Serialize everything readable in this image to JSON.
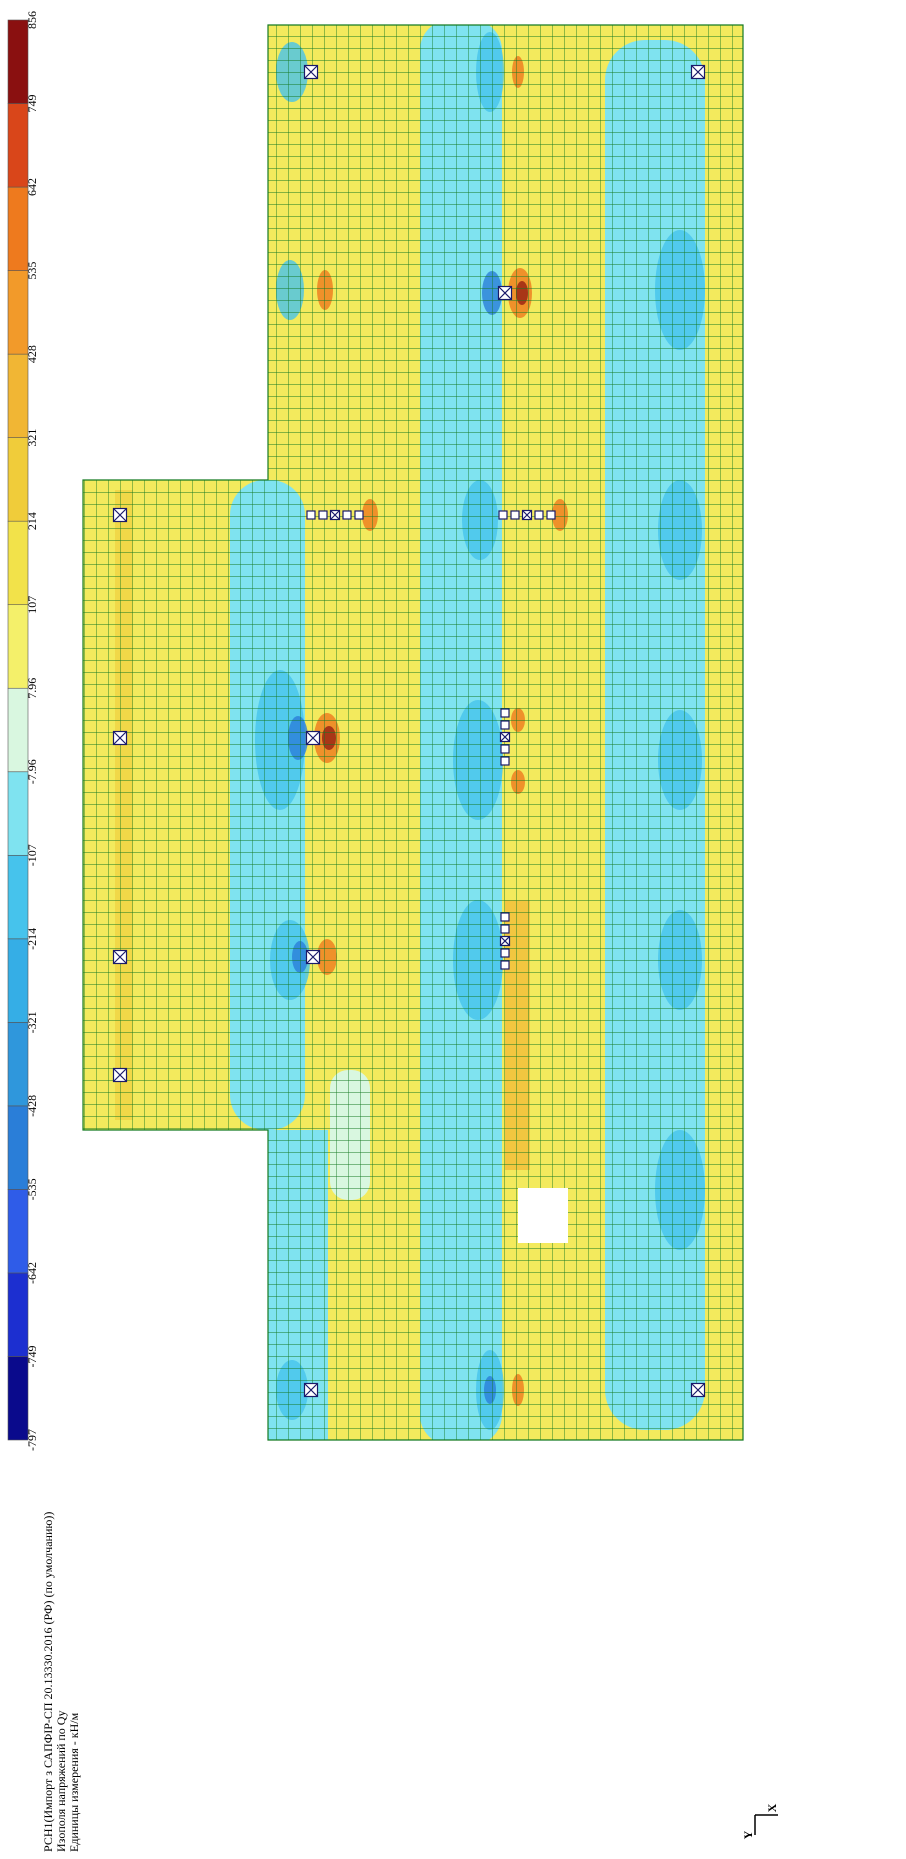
{
  "legend": {
    "labels": [
      "-797",
      "-749",
      "-642",
      "-535",
      "-428",
      "-321",
      "-214",
      "-107",
      "-7.96",
      "7.96",
      "107",
      "214",
      "321",
      "428",
      "535",
      "642",
      "749",
      "856"
    ],
    "colors": [
      "#0a0a8c",
      "#1c2fd0",
      "#2f5ce8",
      "#2a7ed8",
      "#2f97dc",
      "#35aee6",
      "#46c3ec",
      "#7fe3f0",
      "#d9f7e0",
      "#f4f06a",
      "#f2e24a",
      "#f0cc3a",
      "#f1b634",
      "#f29a2a",
      "#ee7a1e",
      "#d9461a",
      "#8a1010"
    ]
  },
  "title_lines": [
    "РСН1(Импорт з САПФІР-СП 20.13330.2016 (РФ) (по умолчанию))",
    "Изополя напряжений по Qy",
    "Единицы измерения - кН/м"
  ],
  "axes": {
    "y": "Y",
    "x": "X"
  }
}
